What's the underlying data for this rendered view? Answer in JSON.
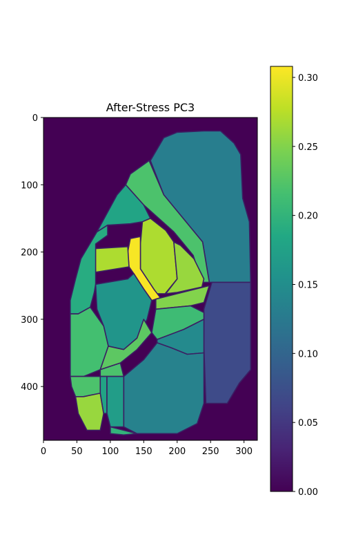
{
  "chart_data": {
    "type": "heatmap",
    "title": "After-Stress PC3",
    "xlabel": "",
    "ylabel": "",
    "xlim": [
      0,
      320
    ],
    "ylim": [
      480,
      0
    ],
    "x_ticks": [
      0,
      50,
      100,
      150,
      200,
      250,
      300
    ],
    "y_ticks": [
      0,
      100,
      200,
      300,
      400
    ],
    "colormap": "viridis",
    "colorbar": {
      "range": [
        0.0,
        0.308
      ],
      "ticks": [
        "0.00",
        "0.05",
        "0.10",
        "0.15",
        "0.20",
        "0.25",
        "0.30"
      ],
      "tick_values": [
        0.0,
        0.05,
        0.1,
        0.15,
        0.2,
        0.25,
        0.3
      ]
    },
    "background_value": 0.0,
    "boundary_color": "#3b1f63",
    "regions": [
      {
        "id": "top-right-large",
        "value": 0.13,
        "polygon": [
          [
            160,
            64
          ],
          [
            180,
            30
          ],
          [
            200,
            22
          ],
          [
            240,
            20
          ],
          [
            265,
            20
          ],
          [
            285,
            38
          ],
          [
            295,
            55
          ],
          [
            298,
            120
          ],
          [
            308,
            155
          ],
          [
            310,
            245
          ],
          [
            248,
            245
          ],
          [
            238,
            185
          ],
          [
            180,
            115
          ]
        ]
      },
      {
        "id": "right-lower",
        "value": 0.07,
        "polygon": [
          [
            252,
            245
          ],
          [
            310,
            245
          ],
          [
            310,
            375
          ],
          [
            293,
            395
          ],
          [
            275,
            425
          ],
          [
            243,
            425
          ],
          [
            240,
            340
          ],
          [
            240,
            285
          ]
        ]
      },
      {
        "id": "diag-strip",
        "value": 0.22,
        "polygon": [
          [
            130,
            84
          ],
          [
            158,
            64
          ],
          [
            180,
            115
          ],
          [
            238,
            185
          ],
          [
            248,
            245
          ],
          [
            237,
            245
          ],
          [
            224,
            205
          ],
          [
            195,
            170
          ],
          [
            150,
            130
          ],
          [
            123,
            100
          ]
        ]
      },
      {
        "id": "upper-left-teal",
        "value": 0.18,
        "polygon": [
          [
            123,
            100
          ],
          [
            150,
            130
          ],
          [
            160,
            150
          ],
          [
            148,
            155
          ],
          [
            130,
            158
          ],
          [
            96,
            160
          ],
          [
            80,
            170
          ],
          [
            92,
            148
          ],
          [
            110,
            115
          ]
        ]
      },
      {
        "id": "green-upper-mid",
        "value": 0.27,
        "polygon": [
          [
            148,
            155
          ],
          [
            160,
            150
          ],
          [
            183,
            168
          ],
          [
            195,
            185
          ],
          [
            200,
            240
          ],
          [
            182,
            262
          ],
          [
            168,
            262
          ],
          [
            165,
            255
          ],
          [
            145,
            225
          ],
          [
            145,
            188
          ]
        ]
      },
      {
        "id": "yellow-cross",
        "value": 0.305,
        "polygon": [
          [
            130,
            180
          ],
          [
            145,
            177
          ],
          [
            145,
            225
          ],
          [
            165,
            255
          ],
          [
            175,
            268
          ],
          [
            162,
            272
          ],
          [
            150,
            255
          ],
          [
            135,
            232
          ],
          [
            128,
            222
          ],
          [
            126,
            200
          ]
        ]
      },
      {
        "id": "green-left-upper",
        "value": 0.27,
        "polygon": [
          [
            76,
            195
          ],
          [
            126,
            192
          ],
          [
            128,
            222
          ],
          [
            78,
            230
          ]
        ]
      },
      {
        "id": "green-right-mid",
        "value": 0.26,
        "polygon": [
          [
            195,
            185
          ],
          [
            205,
            190
          ],
          [
            225,
            210
          ],
          [
            240,
            240
          ],
          [
            237,
            252
          ],
          [
            200,
            260
          ],
          [
            183,
            262
          ],
          [
            200,
            240
          ]
        ]
      },
      {
        "id": "left-strip",
        "value": 0.19,
        "polygon": [
          [
            80,
            170
          ],
          [
            96,
            160
          ],
          [
            96,
            175
          ],
          [
            78,
            188
          ],
          [
            78,
            235
          ],
          [
            78,
            248
          ],
          [
            76,
            260
          ],
          [
            70,
            282
          ],
          [
            52,
            292
          ],
          [
            40,
            292
          ],
          [
            40,
            272
          ],
          [
            48,
            240
          ],
          [
            56,
            210
          ]
        ]
      },
      {
        "id": "center-teal",
        "value": 0.16,
        "polygon": [
          [
            78,
            248
          ],
          [
            126,
            240
          ],
          [
            135,
            232
          ],
          [
            150,
            255
          ],
          [
            162,
            272
          ],
          [
            155,
            300
          ],
          [
            140,
            328
          ],
          [
            120,
            345
          ],
          [
            97,
            340
          ],
          [
            90,
            310
          ],
          [
            80,
            285
          ]
        ]
      },
      {
        "id": "right-mid-green",
        "value": 0.25,
        "polygon": [
          [
            168,
            270
          ],
          [
            200,
            262
          ],
          [
            248,
            250
          ],
          [
            240,
            275
          ],
          [
            220,
            280
          ],
          [
            168,
            285
          ]
        ]
      },
      {
        "id": "mid-green-band",
        "value": 0.21,
        "polygon": [
          [
            168,
            285
          ],
          [
            220,
            280
          ],
          [
            240,
            290
          ],
          [
            240,
            300
          ],
          [
            210,
            315
          ],
          [
            170,
            330
          ],
          [
            162,
            320
          ]
        ]
      },
      {
        "id": "mid-teal-right",
        "value": 0.145,
        "polygon": [
          [
            170,
            330
          ],
          [
            210,
            315
          ],
          [
            240,
            300
          ],
          [
            240,
            350
          ],
          [
            215,
            352
          ],
          [
            190,
            342
          ],
          [
            170,
            335
          ]
        ]
      },
      {
        "id": "left-green",
        "value": 0.215,
        "polygon": [
          [
            40,
            292
          ],
          [
            52,
            292
          ],
          [
            70,
            282
          ],
          [
            90,
            310
          ],
          [
            97,
            340
          ],
          [
            85,
            375
          ],
          [
            60,
            385
          ],
          [
            40,
            385
          ]
        ]
      },
      {
        "id": "center-green-small",
        "value": 0.23,
        "polygon": [
          [
            97,
            340
          ],
          [
            120,
            345
          ],
          [
            140,
            328
          ],
          [
            150,
            300
          ],
          [
            162,
            320
          ],
          [
            140,
            345
          ],
          [
            115,
            365
          ],
          [
            85,
            375
          ]
        ]
      },
      {
        "id": "center-small",
        "value": 0.22,
        "polygon": [
          [
            85,
            375
          ],
          [
            115,
            365
          ],
          [
            120,
            385
          ],
          [
            85,
            385
          ]
        ]
      },
      {
        "id": "big-bottom",
        "value": 0.135,
        "polygon": [
          [
            120,
            385
          ],
          [
            150,
            360
          ],
          [
            170,
            335
          ],
          [
            190,
            342
          ],
          [
            215,
            352
          ],
          [
            240,
            350
          ],
          [
            240,
            425
          ],
          [
            230,
            455
          ],
          [
            200,
            470
          ],
          [
            140,
            470
          ],
          [
            120,
            460
          ]
        ]
      },
      {
        "id": "bottom-left-green1",
        "value": 0.22,
        "polygon": [
          [
            40,
            385
          ],
          [
            60,
            385
          ],
          [
            85,
            385
          ],
          [
            85,
            410
          ],
          [
            60,
            415
          ],
          [
            48,
            415
          ],
          [
            42,
            400
          ]
        ]
      },
      {
        "id": "bottom-left-green2",
        "value": 0.26,
        "polygon": [
          [
            48,
            415
          ],
          [
            60,
            415
          ],
          [
            85,
            410
          ],
          [
            90,
            440
          ],
          [
            85,
            465
          ],
          [
            65,
            465
          ],
          [
            52,
            440
          ]
        ]
      },
      {
        "id": "small-teal-col",
        "value": 0.18,
        "polygon": [
          [
            85,
            385
          ],
          [
            95,
            385
          ],
          [
            95,
            440
          ],
          [
            90,
            440
          ],
          [
            85,
            410
          ]
        ]
      },
      {
        "id": "small-teal-col2",
        "value": 0.17,
        "polygon": [
          [
            95,
            385
          ],
          [
            120,
            385
          ],
          [
            120,
            460
          ],
          [
            100,
            460
          ],
          [
            95,
            440
          ]
        ]
      },
      {
        "id": "bottom-sliver",
        "value": 0.2,
        "polygon": [
          [
            100,
            460
          ],
          [
            140,
            470
          ],
          [
            120,
            472
          ],
          [
            100,
            470
          ]
        ]
      }
    ]
  }
}
